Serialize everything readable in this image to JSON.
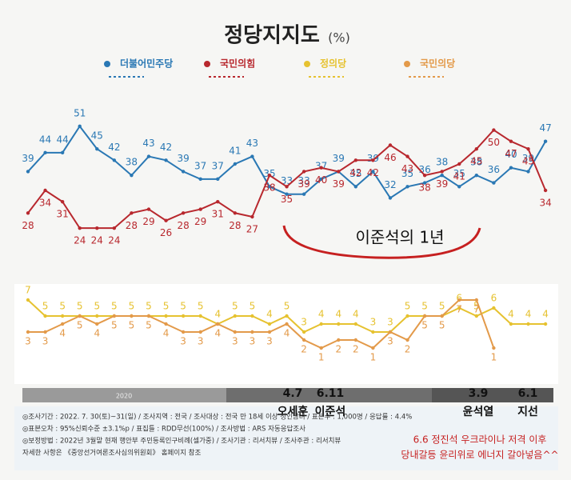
{
  "chart_data": {
    "type": "line",
    "title": "정당지지도",
    "unit": "(%)",
    "ylim": [
      20,
      55
    ],
    "series": [
      {
        "name": "더불어민주당",
        "color": "#2a78b4",
        "values": [
          39,
          44,
          44,
          51,
          45,
          42,
          38,
          43,
          42,
          39,
          37,
          37,
          41,
          43,
          35,
          33,
          33,
          37,
          39,
          35,
          39,
          32,
          35,
          36,
          38,
          35,
          38,
          36,
          40,
          39,
          47
        ]
      },
      {
        "name": "국민의힘",
        "color": "#b8282e",
        "values": [
          28,
          34,
          31,
          24,
          24,
          24,
          28,
          29,
          26,
          28,
          29,
          31,
          28,
          27,
          38,
          35,
          39,
          40,
          39,
          42,
          42,
          46,
          43,
          38,
          39,
          41,
          45,
          50,
          47,
          45,
          34
        ]
      }
    ],
    "lower": {
      "type": "line",
      "ylim": [
        0,
        8
      ],
      "series": [
        {
          "name": "정의당",
          "color": "#e6c230",
          "values": [
            7,
            5,
            5,
            5,
            5,
            5,
            5,
            5,
            5,
            5,
            5,
            4,
            5,
            5,
            4,
            5,
            3,
            4,
            4,
            4,
            3,
            3,
            5,
            5,
            5,
            6,
            5,
            6,
            4,
            4,
            4
          ]
        },
        {
          "name": "국민의당",
          "color": "#e39a4a",
          "values": [
            3,
            3,
            4,
            5,
            4,
            5,
            5,
            5,
            4,
            3,
            3,
            4,
            3,
            3,
            3,
            4,
            2,
            1,
            2,
            2,
            1,
            3,
            2,
            5,
            5,
            7,
            7,
            1,
            null,
            null,
            null
          ]
        }
      ]
    },
    "period_label": "이준석의 1년",
    "year_label": "2020",
    "events": [
      {
        "date": "4.7",
        "label": "오세훈"
      },
      {
        "date": "6.11",
        "label": "이준석"
      },
      {
        "date": "3.9",
        "label": "윤석열"
      },
      {
        "date": "6.1",
        "label": "지선"
      }
    ],
    "comment": [
      "6.6 정진석 우크라이나 저격 이후",
      "당내갈등 윤리위로 에너지 갈아넣음^^"
    ],
    "notes": [
      "◎조사기간 : 2022. 7. 30(토)~31(일) / 조사지역 : 전국 / 조사대상 : 전국 만 18세 이상 성인남녀 / 표본수 : 1,000명 / 응답률 : 4.4%",
      "◎표본오차 : 95%신뢰수준 ±3.1%p / 표집틀 : RDD무선(100%) / 조사방법 : ARS 자동응답조사",
      "◎보정방법 : 2022년 3월말 현재 행안부 주민등록인구비례(셀가중) / 조사기관 : 리서치뷰 / 조사주관 : 리서치뷰",
      "자세한 사항은 《중앙선거여론조사심의위원회》 홈페이지 참조"
    ]
  }
}
